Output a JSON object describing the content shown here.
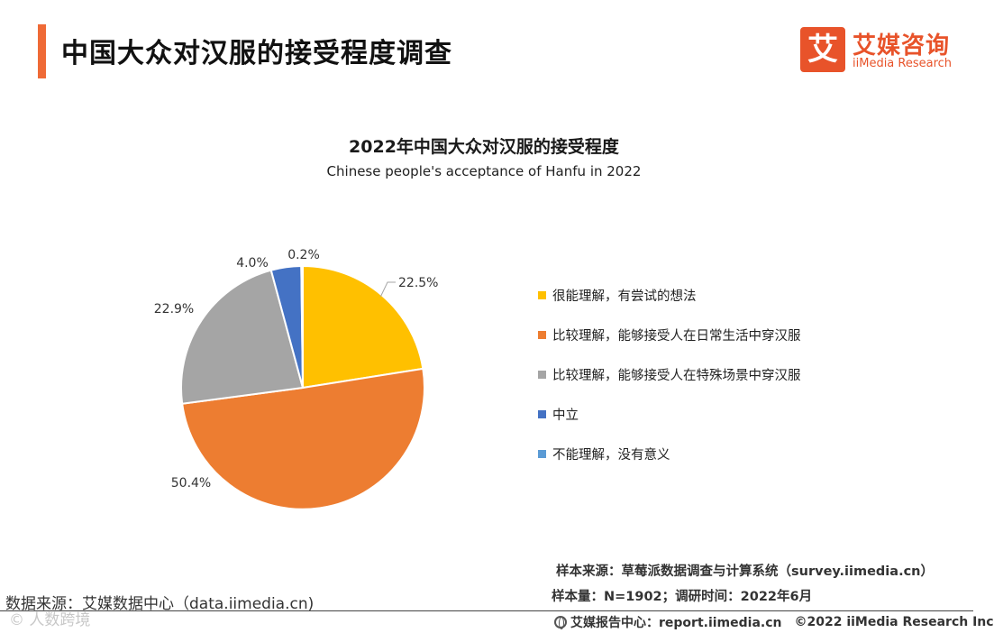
{
  "header": {
    "title": "中国大众对汉服的接受程度调查"
  },
  "logo": {
    "mark": "艾",
    "cn": "艾媒咨询",
    "en": "iiMedia Research"
  },
  "chart_data": {
    "type": "pie",
    "title": "2022年中国大众对汉服的接受程度",
    "subtitle": "Chinese people's acceptance of Hanfu in 2022",
    "slices": [
      {
        "label": "很能理解，有尝试的想法",
        "value": 22.5,
        "value_label": "22.5%",
        "color": "#ffc000"
      },
      {
        "label": "比较理解，能够接受人在日常生活中穿汉服",
        "value": 50.4,
        "value_label": "50.4%",
        "color": "#ed7d31"
      },
      {
        "label": "比较理解，能够接受人在特殊场景中穿汉服",
        "value": 22.9,
        "value_label": "22.9%",
        "color": "#a5a5a5"
      },
      {
        "label": "中立",
        "value": 4.0,
        "value_label": "4.0%",
        "color": "#4472c4"
      },
      {
        "label": "不能理解，没有意义",
        "value": 0.2,
        "value_label": "0.2%",
        "color": "#5b9bd5"
      }
    ],
    "legend_position": "right"
  },
  "notes": {
    "sample_source": "样本来源：草莓派数据调查与计算系统（survey.iimedia.cn）",
    "sample_size": "样本量：N=1902；调研时间：2022年6月",
    "data_source": "数据来源：艾媒数据中心（data.iimedia.cn)"
  },
  "footer": {
    "report_center": "艾媒报告中心：report.iimedia.cn",
    "copyright": "©2022  iiMedia Research  Inc"
  },
  "watermark": "© 人数跨境"
}
